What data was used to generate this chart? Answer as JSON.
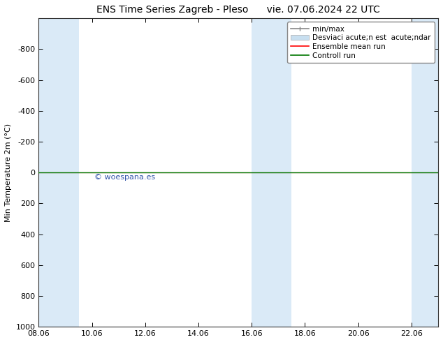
{
  "title": "ENS Time Series Zagreb - Pleso      vie. 07.06.2024 22 UTC",
  "ylabel": "Min Temperature 2m (°C)",
  "ylim_top": -1000,
  "ylim_bottom": 1000,
  "yticks": [
    -800,
    -600,
    -400,
    -200,
    0,
    200,
    400,
    600,
    800,
    1000
  ],
  "xtick_labels": [
    "08.06",
    "10.06",
    "12.06",
    "14.06",
    "16.06",
    "18.06",
    "20.06",
    "22.06"
  ],
  "xtick_positions": [
    0,
    2,
    4,
    6,
    8,
    10,
    12,
    14
  ],
  "x_min": 0,
  "x_max": 15,
  "background_color": "#ffffff",
  "plot_bg_color": "#ffffff",
  "shaded_bands": [
    {
      "x_start": 0,
      "x_end": 1.5
    },
    {
      "x_start": 8,
      "x_end": 9.5
    },
    {
      "x_start": 14,
      "x_end": 15
    }
  ],
  "shaded_color": "#daeaf7",
  "control_run_color": "#007700",
  "ensemble_mean_color": "#ff0000",
  "watermark_text": "© woespana.es",
  "watermark_color": "#3355aa",
  "legend_label_minmax": "min/max",
  "legend_label_desv": "Desviaci acute;n est  acute;ndar",
  "legend_label_ensemble": "Ensemble mean run",
  "legend_label_control": "Controll run",
  "legend_color_minmax": "#888888",
  "legend_color_desv": "#c8dff0",
  "title_fontsize": 10,
  "axis_label_fontsize": 8,
  "tick_fontsize": 8,
  "legend_fontsize": 7.5
}
